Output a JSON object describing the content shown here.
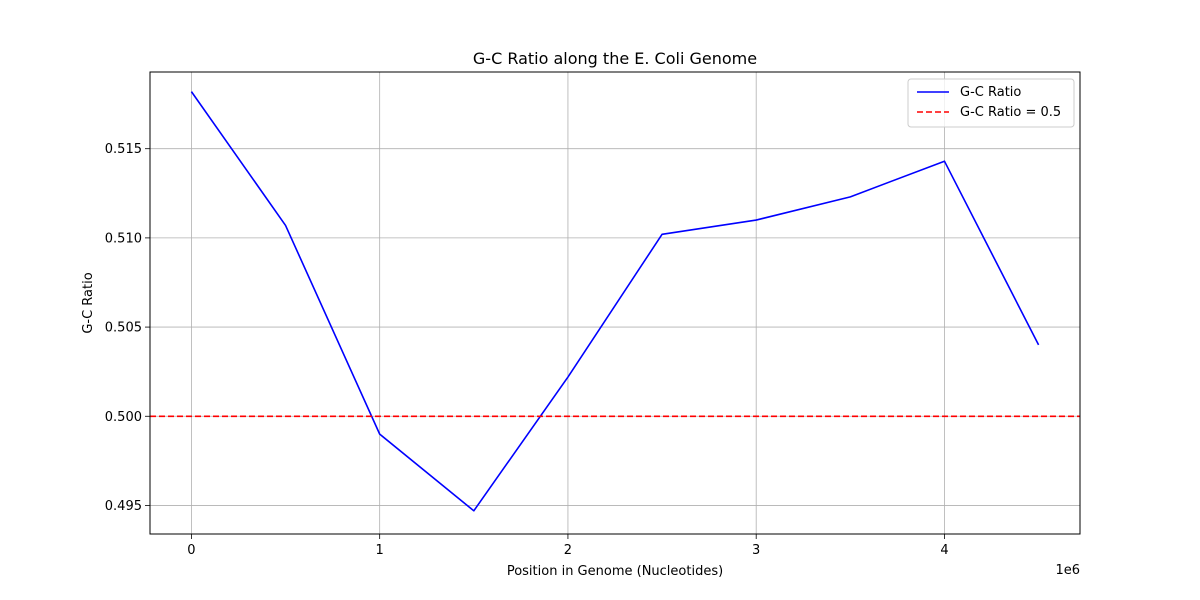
{
  "chart_data": {
    "type": "line",
    "title": "G-C Ratio along the E. Coli Genome",
    "xlabel": "Position in Genome (Nucleotides)",
    "ylabel": "G-C Ratio",
    "x_offset_label": "1e6",
    "x_scale": 1000000,
    "xlim": [
      -220000,
      4720000
    ],
    "ylim": [
      0.4934,
      0.5193
    ],
    "x_ticks": [
      0,
      1000000,
      2000000,
      3000000,
      4000000
    ],
    "x_tick_labels": [
      "0",
      "1",
      "2",
      "3",
      "4"
    ],
    "y_ticks": [
      0.495,
      0.5,
      0.505,
      0.51,
      0.515
    ],
    "y_tick_labels": [
      "0.495",
      "0.500",
      "0.505",
      "0.510",
      "0.515"
    ],
    "grid": true,
    "legend_position": "top-right",
    "series": [
      {
        "name": "G-C Ratio",
        "color": "#0000ff",
        "style": "solid",
        "x": [
          0,
          500000,
          1000000,
          1500000,
          2000000,
          2500000,
          3000000,
          3500000,
          4000000,
          4500000
        ],
        "y": [
          0.5182,
          0.5107,
          0.499,
          0.4947,
          0.5022,
          0.5102,
          0.511,
          0.5123,
          0.5143,
          0.504
        ]
      },
      {
        "name": "G-C Ratio = 0.5",
        "color": "#ff0000",
        "style": "dashed",
        "hline": 0.5
      }
    ]
  }
}
